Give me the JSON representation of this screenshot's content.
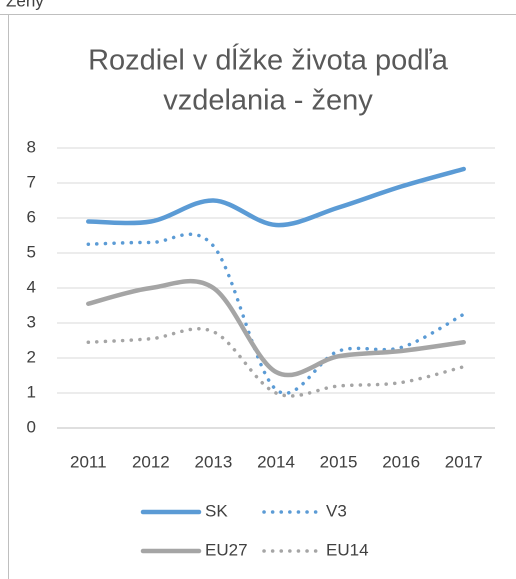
{
  "page_label": "Ženy",
  "chart_data": {
    "type": "line",
    "title": [
      "Rozdiel v dĺžke života podľa",
      "vzdelania - ženy"
    ],
    "categories": [
      "2011",
      "2012",
      "2013",
      "2014",
      "2015",
      "2016",
      "2017"
    ],
    "series": [
      {
        "name": "SK",
        "color": "#5b9bd5",
        "dash": "solid",
        "values": [
          5.9,
          5.9,
          6.5,
          5.8,
          6.3,
          6.9,
          7.4
        ]
      },
      {
        "name": "V3",
        "color": "#5b9bd5",
        "dash": "dotted",
        "values": [
          5.25,
          5.3,
          5.2,
          1.1,
          2.2,
          2.3,
          3.25
        ]
      },
      {
        "name": "EU27",
        "color": "#a5a5a5",
        "dash": "solid",
        "values": [
          3.55,
          4.0,
          4.0,
          1.6,
          2.05,
          2.2,
          2.45
        ]
      },
      {
        "name": "EU14",
        "color": "#a5a5a5",
        "dash": "dotted",
        "values": [
          2.45,
          2.55,
          2.75,
          1.0,
          1.2,
          1.3,
          1.75
        ]
      }
    ],
    "ylim": [
      0,
      8
    ],
    "yticks": [
      0,
      1,
      2,
      3,
      4,
      5,
      6,
      7,
      8
    ],
    "grid": true,
    "smooth": true,
    "legend": "bottom"
  }
}
